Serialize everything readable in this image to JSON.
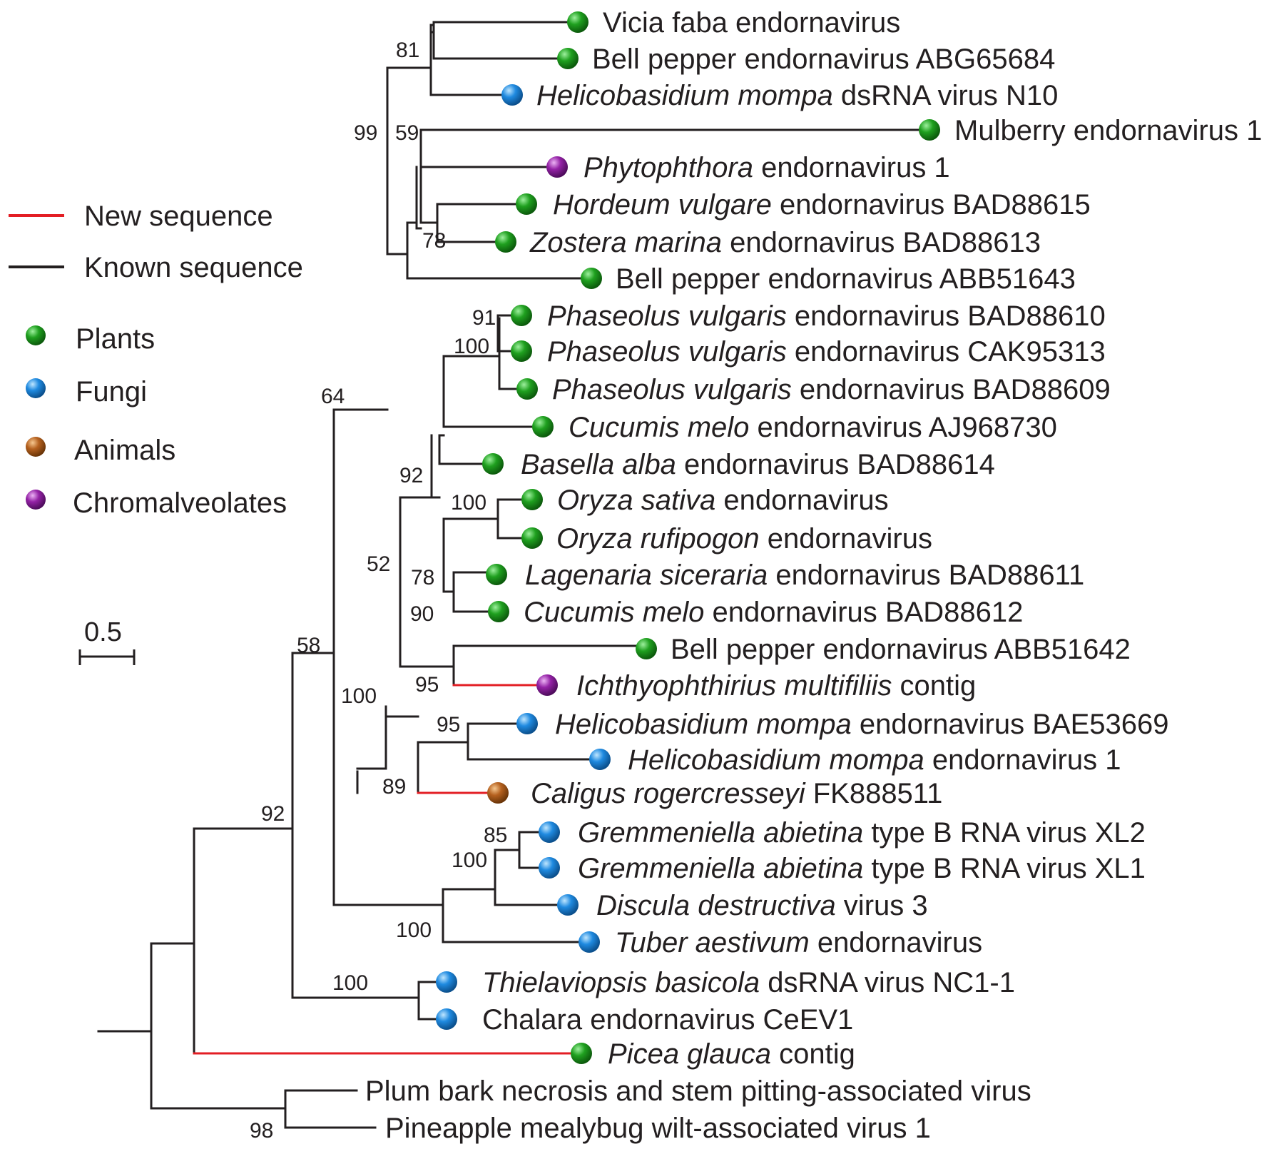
{
  "colors": {
    "known_branch": "#231f20",
    "new_branch": "#e31e24",
    "plants": "#1a8c1a",
    "fungi": "#1a7fd0",
    "animals": "#a8561a",
    "chromalveolates": "#8b1f9a"
  },
  "legend": {
    "new_sequence": "New sequence",
    "known_sequence": "Known sequence",
    "plants": "Plants",
    "fungi": "Fungi",
    "animals": "Animals",
    "chromalveolates": "Chromalveolates"
  },
  "scale_bar": {
    "label": "0.5"
  },
  "taxa": [
    {
      "name": "Vicia faba endornavirus",
      "italic": "",
      "rest": "Vicia faba endornavirus",
      "group": "plants",
      "branch": "known"
    },
    {
      "name": "Bell pepper endornavirus ABG65684",
      "italic": "",
      "rest": "Bell pepper endornavirus ABG65684",
      "group": "plants",
      "branch": "known"
    },
    {
      "name": "Helicobasidium mompa dsRNA virus N10",
      "italic": "Helicobasidium mompa",
      "rest": " dsRNA virus N10",
      "group": "fungi",
      "branch": "known"
    },
    {
      "name": "Mulberry endornavirus 1",
      "italic": "",
      "rest": "Mulberry endornavirus 1",
      "group": "plants",
      "branch": "known"
    },
    {
      "name": "Phytophthora endornavirus 1",
      "italic": "Phytophthora",
      "rest": " endornavirus 1",
      "group": "chromalveolates",
      "branch": "known"
    },
    {
      "name": "Hordeum vulgare endornavirus BAD88615",
      "italic": "Hordeum vulgare",
      "rest": " endornavirus BAD88615",
      "group": "plants",
      "branch": "known"
    },
    {
      "name": "Zostera marina endornavirus BAD88613",
      "italic": "Zostera marina",
      "rest": " endornavirus BAD88613",
      "group": "plants",
      "branch": "known"
    },
    {
      "name": "Bell pepper endornavirus ABB51643",
      "italic": "",
      "rest": "Bell pepper endornavirus ABB51643",
      "group": "plants",
      "branch": "known"
    },
    {
      "name": "Phaseolus vulgaris endornavirus BAD88610",
      "italic": "Phaseolus vulgaris",
      "rest": " endornavirus BAD88610",
      "group": "plants",
      "branch": "known"
    },
    {
      "name": "Phaseolus vulgaris endornavirus CAK95313",
      "italic": "Phaseolus vulgaris",
      "rest": " endornavirus CAK95313",
      "group": "plants",
      "branch": "known"
    },
    {
      "name": "Phaseolus vulgaris endornavirus BAD88609",
      "italic": "Phaseolus vulgaris",
      "rest": " endornavirus BAD88609",
      "group": "plants",
      "branch": "known"
    },
    {
      "name": "Cucumis melo endornavirus AJ968730",
      "italic": "Cucumis melo",
      "rest": " endornavirus AJ968730",
      "group": "plants",
      "branch": "known"
    },
    {
      "name": "Basella alba endornavirus BAD88614",
      "italic": "Basella alba",
      "rest": " endornavirus BAD88614",
      "group": "plants",
      "branch": "known"
    },
    {
      "name": "Oryza sativa endornavirus",
      "italic": "Oryza sativa",
      "rest": " endornavirus",
      "group": "plants",
      "branch": "known"
    },
    {
      "name": "Oryza rufipogon endornavirus",
      "italic": "Oryza rufipogon",
      "rest": " endornavirus",
      "group": "plants",
      "branch": "known"
    },
    {
      "name": "Lagenaria siceraria endornavirus BAD88611",
      "italic": "Lagenaria siceraria",
      "rest": " endornavirus BAD88611",
      "group": "plants",
      "branch": "known"
    },
    {
      "name": "Cucumis melo endornavirus BAD88612",
      "italic": "Cucumis melo",
      "rest": " endornavirus BAD88612",
      "group": "plants",
      "branch": "known"
    },
    {
      "name": "Bell pepper endornavirus ABB51642",
      "italic": "",
      "rest": "Bell pepper endornavirus ABB51642",
      "group": "plants",
      "branch": "known"
    },
    {
      "name": "Ichthyophthirius multifiliis contig",
      "italic": "Ichthyophthirius multifiliis",
      "rest": " contig",
      "group": "chromalveolates",
      "branch": "new"
    },
    {
      "name": "Helicobasidium mompa endornavirus BAE53669",
      "italic": "Helicobasidium mompa",
      "rest": " endornavirus BAE53669",
      "group": "fungi",
      "branch": "known"
    },
    {
      "name": "Helicobasidium mompa endornavirus 1",
      "italic": "Helicobasidium mompa",
      "rest": " endornavirus 1",
      "group": "fungi",
      "branch": "known"
    },
    {
      "name": "Caligus rogercresseyi FK888511",
      "italic": "Caligus rogercresseyi",
      "rest": " FK888511",
      "group": "animals",
      "branch": "new"
    },
    {
      "name": "Gremmeniella abietina type B RNA virus XL2",
      "italic": "Gremmeniella abietina",
      "rest": " type B RNA virus XL2",
      "group": "fungi",
      "branch": "known"
    },
    {
      "name": "Gremmeniella abietina type B RNA virus XL1",
      "italic": "Gremmeniella abietina",
      "rest": " type B RNA virus XL1",
      "group": "fungi",
      "branch": "known"
    },
    {
      "name": "Discula destructiva virus 3",
      "italic": "Discula destructiva",
      "rest": " virus 3",
      "group": "fungi",
      "branch": "known"
    },
    {
      "name": "Tuber aestivum endornavirus",
      "italic": "Tuber aestivum",
      "rest": " endornavirus",
      "group": "fungi",
      "branch": "known"
    },
    {
      "name": "Thielaviopsis basicola dsRNA virus NC1-1",
      "italic": "Thielaviopsis basicola",
      "rest": " dsRNA virus NC1-1",
      "group": "fungi",
      "branch": "known"
    },
    {
      "name": "Chalara endornavirus CeEV1",
      "italic": "",
      "rest": "Chalara endornavirus CeEV1",
      "group": "fungi",
      "branch": "known"
    },
    {
      "name": "Picea glauca contig",
      "italic": "Picea glauca",
      "rest": " contig",
      "group": "plants",
      "branch": "new"
    },
    {
      "name": "Plum bark necrosis and stem pitting-associated virus",
      "italic": "",
      "rest": "Plum bark necrosis and stem pitting-associated virus",
      "group": "none",
      "branch": "known"
    },
    {
      "name": "Pineapple mealybug wilt-associated virus 1",
      "italic": "",
      "rest": "Pineapple mealybug wilt-associated virus 1",
      "group": "none",
      "branch": "known"
    }
  ],
  "bootstrap": [
    "81",
    "99",
    "59",
    "78",
    "64",
    "91",
    "100",
    "92",
    "100",
    "52",
    "78",
    "90",
    "58",
    "95",
    "100",
    "95",
    "89",
    "85",
    "100",
    "100",
    "92",
    "100",
    "98"
  ]
}
